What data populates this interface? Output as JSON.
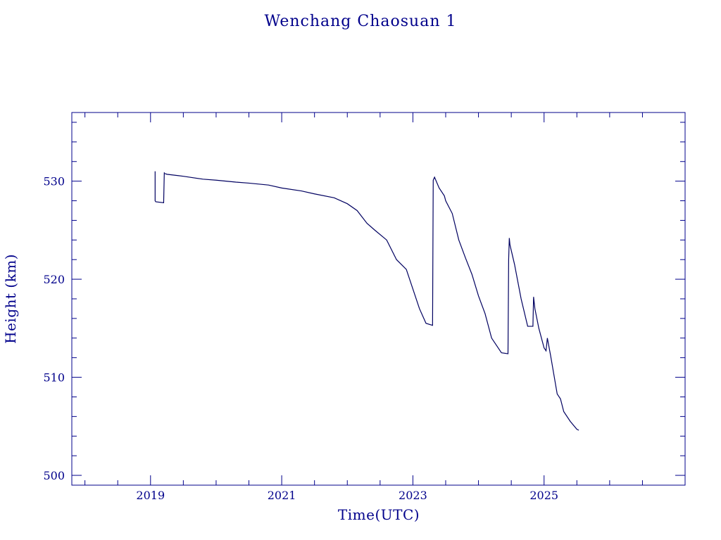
{
  "chart_data": {
    "type": "line",
    "title": "Wenchang Chaosuan 1",
    "xlabel": "Time(UTC)",
    "ylabel": "Height (km)",
    "x_unit": "year",
    "xlim": [
      2017.8,
      2027.15
    ],
    "ylim": [
      499,
      537
    ],
    "x_ticks": [
      2019,
      2021,
      2023,
      2025
    ],
    "x_tick_labels": [
      "2019",
      "2021",
      "2023",
      "2025"
    ],
    "x_minor_ticks": [
      2018,
      2018.5,
      2019.5,
      2020,
      2020.5,
      2021.5,
      2022,
      2022.5,
      2023.5,
      2024,
      2024.5,
      2025.5,
      2026,
      2026.5
    ],
    "y_ticks": [
      500,
      510,
      520,
      530
    ],
    "y_tick_labels": [
      "500",
      "510",
      "520",
      "530"
    ],
    "y_minor_ticks": [
      502,
      504,
      506,
      508,
      512,
      514,
      516,
      518,
      522,
      524,
      526,
      528,
      532,
      534,
      536
    ],
    "grid": false,
    "legend": "none",
    "colors": {
      "line": "#000060",
      "frame": "#00008b",
      "text": "#00008b"
    },
    "series": [
      {
        "x": [
          2019.07,
          2019.07,
          2019.08,
          2019.2,
          2019.21,
          2019.21,
          2019.25,
          2019.5,
          2019.8,
          2020.0,
          2020.3,
          2020.5,
          2020.8,
          2021.0,
          2021.3,
          2021.5,
          2021.8,
          2022.0,
          2022.15,
          2022.3,
          2022.42,
          2022.6,
          2022.75,
          2022.9,
          2023.0,
          2023.1,
          2023.2,
          2023.3,
          2023.31,
          2023.33,
          2023.4,
          2023.48,
          2023.5,
          2023.6,
          2023.7,
          2023.8,
          2023.9,
          2024.0,
          2024.1,
          2024.2,
          2024.28,
          2024.35,
          2024.45,
          2024.46,
          2024.47,
          2024.48,
          2024.55,
          2024.65,
          2024.75,
          2024.83,
          2024.84,
          2024.86,
          2024.92,
          2025.0,
          2025.03,
          2025.05,
          2025.1,
          2025.2,
          2025.25,
          2025.3,
          2025.4,
          2025.5,
          2025.53
        ],
        "y": [
          531.0,
          528.0,
          527.9,
          527.8,
          530.9,
          530.8,
          530.7,
          530.5,
          530.2,
          530.1,
          529.9,
          529.8,
          529.6,
          529.3,
          529.0,
          528.7,
          528.3,
          527.7,
          527.0,
          525.7,
          525.0,
          524.0,
          522.0,
          521.0,
          519.0,
          517.0,
          515.5,
          515.3,
          530.1,
          530.4,
          529.3,
          528.5,
          528.0,
          526.7,
          524.0,
          522.2,
          520.5,
          518.3,
          516.5,
          514.0,
          513.2,
          512.5,
          512.4,
          522.0,
          524.2,
          523.5,
          521.5,
          518.0,
          515.2,
          515.2,
          518.2,
          517.0,
          515.0,
          513.0,
          512.7,
          514.0,
          512.2,
          508.3,
          507.8,
          506.5,
          505.5,
          504.7,
          504.6
        ]
      }
    ]
  }
}
